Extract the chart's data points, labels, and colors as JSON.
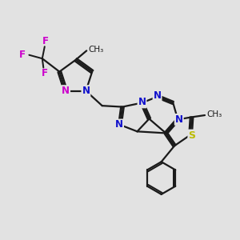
{
  "bg_color": "#e2e2e2",
  "bond_color": "#1a1a1a",
  "bond_width": 1.6,
  "atom_colors": {
    "N_blue": "#1010cc",
    "N_magenta": "#cc00cc",
    "F": "#cc00cc",
    "S": "#bbbb00",
    "C": "#1a1a1a"
  },
  "figsize": [
    3.0,
    3.0
  ],
  "dpi": 100,
  "xlim": [
    0,
    10
  ],
  "ylim": [
    0,
    10
  ]
}
